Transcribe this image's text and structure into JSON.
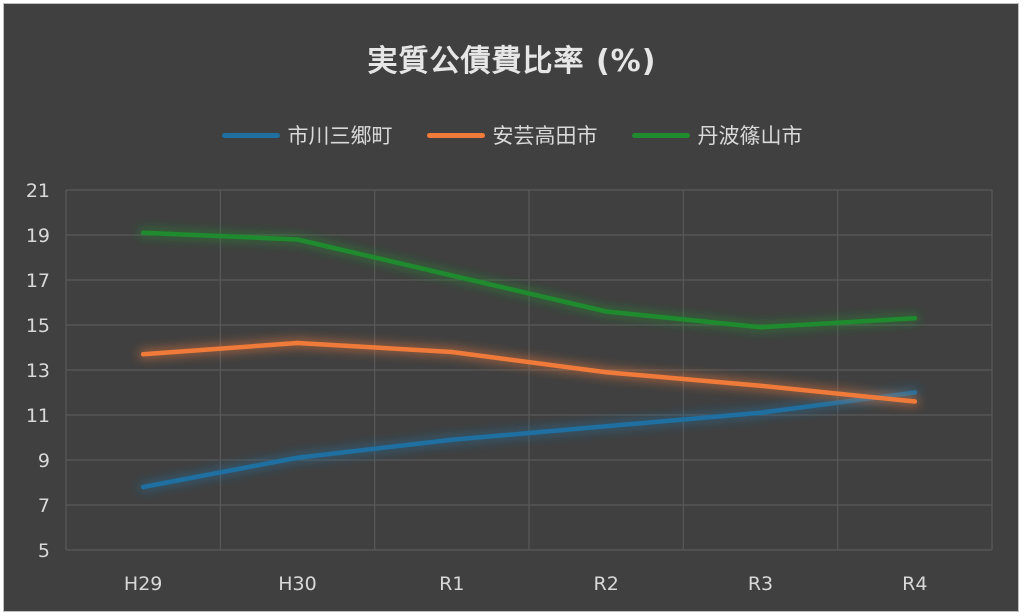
{
  "chart_data": {
    "type": "line",
    "title": "実質公債費比率 (%)",
    "categories": [
      "H29",
      "H30",
      "R1",
      "R2",
      "R3",
      "R4"
    ],
    "series": [
      {
        "name": "市川三郷町",
        "color": "#1f6fa0",
        "values": [
          7.8,
          9.1,
          9.9,
          10.5,
          11.1,
          12.0
        ]
      },
      {
        "name": "安芸高田市",
        "color": "#f07a3a",
        "values": [
          13.7,
          14.2,
          13.8,
          12.9,
          12.3,
          11.6
        ]
      },
      {
        "name": "丹波篠山市",
        "color": "#1f8a2e",
        "values": [
          19.1,
          18.8,
          17.2,
          15.6,
          14.9,
          15.3
        ]
      }
    ],
    "yticks": [
      "5",
      "7",
      "9",
      "11",
      "13",
      "15",
      "17",
      "19",
      "21"
    ],
    "ylim": [
      5,
      21
    ],
    "legend_position": "top",
    "grid": true
  },
  "colors": {
    "background": "#404040",
    "grid": "#595959",
    "text": "#d9d9d9"
  }
}
